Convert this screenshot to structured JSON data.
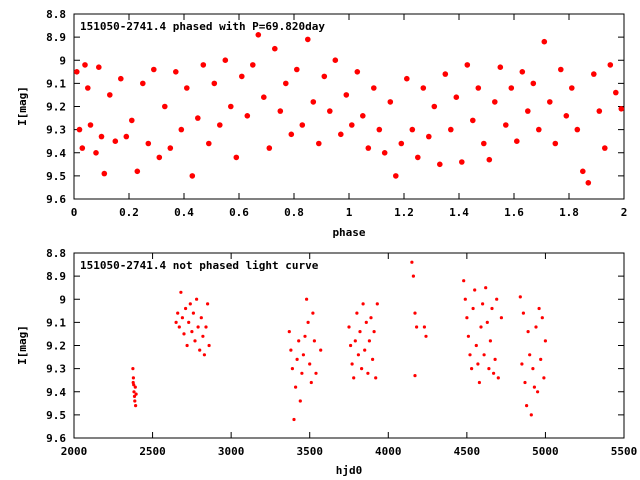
{
  "chart_data": [
    {
      "type": "scatter",
      "title": "151050-2741.4 phased with P=69.820day",
      "xlabel": "phase",
      "ylabel": "I[mag]",
      "xlim": [
        0,
        2
      ],
      "ylim": [
        9.6,
        8.8
      ],
      "y_inverted": true,
      "grid": false,
      "legend": "none",
      "color": "#ff0000",
      "marker": "filled-circle",
      "x_ticks": [
        "0",
        "0.2",
        "0.4",
        "0.6",
        "0.8",
        "1",
        "1.2",
        "1.4",
        "1.6",
        "1.8",
        "2"
      ],
      "y_ticks": [
        "8.8",
        "8.9",
        "9",
        "9.1",
        "9.2",
        "9.3",
        "9.4",
        "9.5",
        "9.6"
      ],
      "series": [
        {
          "points": [
            [
              0.01,
              9.05
            ],
            [
              0.02,
              9.3
            ],
            [
              0.03,
              9.38
            ],
            [
              0.04,
              9.02
            ],
            [
              0.05,
              9.12
            ],
            [
              0.06,
              9.28
            ],
            [
              0.08,
              9.4
            ],
            [
              0.09,
              9.03
            ],
            [
              0.1,
              9.33
            ],
            [
              0.11,
              9.49
            ],
            [
              0.13,
              9.15
            ],
            [
              0.15,
              9.35
            ],
            [
              0.17,
              9.08
            ],
            [
              0.19,
              9.33
            ],
            [
              0.21,
              9.26
            ],
            [
              0.23,
              9.48
            ],
            [
              0.25,
              9.1
            ],
            [
              0.27,
              9.36
            ],
            [
              0.29,
              9.04
            ],
            [
              0.31,
              9.42
            ],
            [
              0.33,
              9.2
            ],
            [
              0.35,
              9.38
            ],
            [
              0.37,
              9.05
            ],
            [
              0.39,
              9.3
            ],
            [
              0.41,
              9.12
            ],
            [
              0.43,
              9.5
            ],
            [
              0.45,
              9.25
            ],
            [
              0.47,
              9.02
            ],
            [
              0.49,
              9.36
            ],
            [
              0.51,
              9.1
            ],
            [
              0.53,
              9.28
            ],
            [
              0.55,
              9.0
            ],
            [
              0.57,
              9.2
            ],
            [
              0.59,
              9.42
            ],
            [
              0.61,
              9.07
            ],
            [
              0.63,
              9.24
            ],
            [
              0.65,
              9.02
            ],
            [
              0.67,
              8.89
            ],
            [
              0.69,
              9.16
            ],
            [
              0.71,
              9.38
            ],
            [
              0.73,
              8.95
            ],
            [
              0.75,
              9.22
            ],
            [
              0.77,
              9.1
            ],
            [
              0.79,
              9.32
            ],
            [
              0.81,
              9.04
            ],
            [
              0.83,
              9.28
            ],
            [
              0.85,
              8.91
            ],
            [
              0.87,
              9.18
            ],
            [
              0.89,
              9.36
            ],
            [
              0.91,
              9.07
            ],
            [
              0.93,
              9.22
            ],
            [
              0.95,
              9.0
            ],
            [
              0.97,
              9.32
            ],
            [
              0.99,
              9.15
            ],
            [
              1.01,
              9.28
            ],
            [
              1.03,
              9.05
            ],
            [
              1.05,
              9.24
            ],
            [
              1.07,
              9.38
            ],
            [
              1.09,
              9.12
            ],
            [
              1.11,
              9.3
            ],
            [
              1.13,
              9.4
            ],
            [
              1.15,
              9.18
            ],
            [
              1.17,
              9.5
            ],
            [
              1.19,
              9.36
            ],
            [
              1.21,
              9.08
            ],
            [
              1.23,
              9.3
            ],
            [
              1.25,
              9.42
            ],
            [
              1.27,
              9.12
            ],
            [
              1.29,
              9.33
            ],
            [
              1.31,
              9.2
            ],
            [
              1.33,
              9.45
            ],
            [
              1.35,
              9.06
            ],
            [
              1.37,
              9.3
            ],
            [
              1.39,
              9.16
            ],
            [
              1.41,
              9.44
            ],
            [
              1.43,
              9.02
            ],
            [
              1.45,
              9.26
            ],
            [
              1.47,
              9.12
            ],
            [
              1.49,
              9.36
            ],
            [
              1.51,
              9.43
            ],
            [
              1.53,
              9.18
            ],
            [
              1.55,
              9.03
            ],
            [
              1.57,
              9.28
            ],
            [
              1.59,
              9.12
            ],
            [
              1.61,
              9.35
            ],
            [
              1.63,
              9.05
            ],
            [
              1.65,
              9.22
            ],
            [
              1.67,
              9.1
            ],
            [
              1.69,
              9.3
            ],
            [
              1.71,
              8.92
            ],
            [
              1.73,
              9.18
            ],
            [
              1.75,
              9.36
            ],
            [
              1.77,
              9.04
            ],
            [
              1.79,
              9.24
            ],
            [
              1.81,
              9.12
            ],
            [
              1.83,
              9.3
            ],
            [
              1.85,
              9.48
            ],
            [
              1.87,
              9.53
            ],
            [
              1.89,
              9.06
            ],
            [
              1.91,
              9.22
            ],
            [
              1.93,
              9.38
            ],
            [
              1.95,
              9.02
            ],
            [
              1.97,
              9.14
            ],
            [
              1.99,
              9.21
            ]
          ]
        }
      ]
    },
    {
      "type": "scatter",
      "title": "151050-2741.4 not phased light curve",
      "xlabel": "hjd0",
      "ylabel": "I[mag]",
      "xlim": [
        2000,
        5500
      ],
      "ylim": [
        9.6,
        8.8
      ],
      "y_inverted": true,
      "grid": false,
      "legend": "none",
      "color": "#ff0000",
      "marker": "small-dot",
      "x_ticks": [
        "2000",
        "2500",
        "3000",
        "3500",
        "4000",
        "4500",
        "5000",
        "5500"
      ],
      "y_ticks": [
        "8.8",
        "8.9",
        "9",
        "9.1",
        "9.2",
        "9.3",
        "9.4",
        "9.5",
        "9.6"
      ],
      "series": [
        {
          "points": [
            [
              2375,
              9.3
            ],
            [
              2378,
              9.34
            ],
            [
              2380,
              9.37
            ],
            [
              2382,
              9.4
            ],
            [
              2385,
              9.42
            ],
            [
              2387,
              9.44
            ],
            [
              2390,
              9.38
            ],
            [
              2392,
              9.46
            ],
            [
              2395,
              9.41
            ],
            [
              2377,
              9.36
            ],
            [
              2650,
              9.1
            ],
            [
              2660,
              9.06
            ],
            [
              2670,
              9.12
            ],
            [
              2680,
              8.97
            ],
            [
              2690,
              9.08
            ],
            [
              2700,
              9.15
            ],
            [
              2710,
              9.04
            ],
            [
              2720,
              9.2
            ],
            [
              2730,
              9.1
            ],
            [
              2740,
              9.02
            ],
            [
              2750,
              9.14
            ],
            [
              2760,
              9.06
            ],
            [
              2770,
              9.18
            ],
            [
              2780,
              9.0
            ],
            [
              2790,
              9.12
            ],
            [
              2800,
              9.22
            ],
            [
              2810,
              9.08
            ],
            [
              2820,
              9.16
            ],
            [
              2830,
              9.24
            ],
            [
              2840,
              9.12
            ],
            [
              2850,
              9.02
            ],
            [
              2860,
              9.2
            ],
            [
              3370,
              9.14
            ],
            [
              3380,
              9.22
            ],
            [
              3390,
              9.3
            ],
            [
              3400,
              9.52
            ],
            [
              3410,
              9.38
            ],
            [
              3420,
              9.26
            ],
            [
              3430,
              9.18
            ],
            [
              3440,
              9.44
            ],
            [
              3450,
              9.32
            ],
            [
              3460,
              9.24
            ],
            [
              3470,
              9.16
            ],
            [
              3480,
              9.0
            ],
            [
              3490,
              9.1
            ],
            [
              3500,
              9.28
            ],
            [
              3510,
              9.36
            ],
            [
              3520,
              9.06
            ],
            [
              3530,
              9.18
            ],
            [
              3540,
              9.32
            ],
            [
              3570,
              9.22
            ],
            [
              3750,
              9.12
            ],
            [
              3760,
              9.2
            ],
            [
              3770,
              9.28
            ],
            [
              3780,
              9.34
            ],
            [
              3790,
              9.18
            ],
            [
              3800,
              9.06
            ],
            [
              3810,
              9.24
            ],
            [
              3820,
              9.14
            ],
            [
              3830,
              9.3
            ],
            [
              3840,
              9.02
            ],
            [
              3850,
              9.22
            ],
            [
              3860,
              9.1
            ],
            [
              3870,
              9.32
            ],
            [
              3880,
              9.18
            ],
            [
              3890,
              9.08
            ],
            [
              3900,
              9.26
            ],
            [
              3910,
              9.14
            ],
            [
              3920,
              9.34
            ],
            [
              3930,
              9.02
            ],
            [
              4150,
              8.84
            ],
            [
              4160,
              8.9
            ],
            [
              4170,
              9.06
            ],
            [
              4180,
              9.12
            ],
            [
              4170,
              9.33
            ],
            [
              4230,
              9.12
            ],
            [
              4240,
              9.16
            ],
            [
              4480,
              8.92
            ],
            [
              4490,
              9.0
            ],
            [
              4500,
              9.08
            ],
            [
              4510,
              9.16
            ],
            [
              4520,
              9.24
            ],
            [
              4530,
              9.3
            ],
            [
              4540,
              9.04
            ],
            [
              4550,
              8.96
            ],
            [
              4560,
              9.2
            ],
            [
              4570,
              9.28
            ],
            [
              4580,
              9.36
            ],
            [
              4590,
              9.12
            ],
            [
              4600,
              9.02
            ],
            [
              4610,
              9.24
            ],
            [
              4620,
              8.95
            ],
            [
              4630,
              9.1
            ],
            [
              4640,
              9.3
            ],
            [
              4650,
              9.18
            ],
            [
              4660,
              9.04
            ],
            [
              4670,
              9.32
            ],
            [
              4680,
              9.26
            ],
            [
              4690,
              9.0
            ],
            [
              4700,
              9.34
            ],
            [
              4720,
              9.08
            ],
            [
              4840,
              8.99
            ],
            [
              4850,
              9.28
            ],
            [
              4860,
              9.06
            ],
            [
              4870,
              9.36
            ],
            [
              4880,
              9.46
            ],
            [
              4890,
              9.14
            ],
            [
              4900,
              9.24
            ],
            [
              4910,
              9.5
            ],
            [
              4920,
              9.3
            ],
            [
              4930,
              9.38
            ],
            [
              4940,
              9.12
            ],
            [
              4950,
              9.4
            ],
            [
              4960,
              9.04
            ],
            [
              4970,
              9.26
            ],
            [
              4980,
              9.08
            ],
            [
              4990,
              9.34
            ],
            [
              5000,
              9.18
            ]
          ]
        }
      ]
    }
  ]
}
